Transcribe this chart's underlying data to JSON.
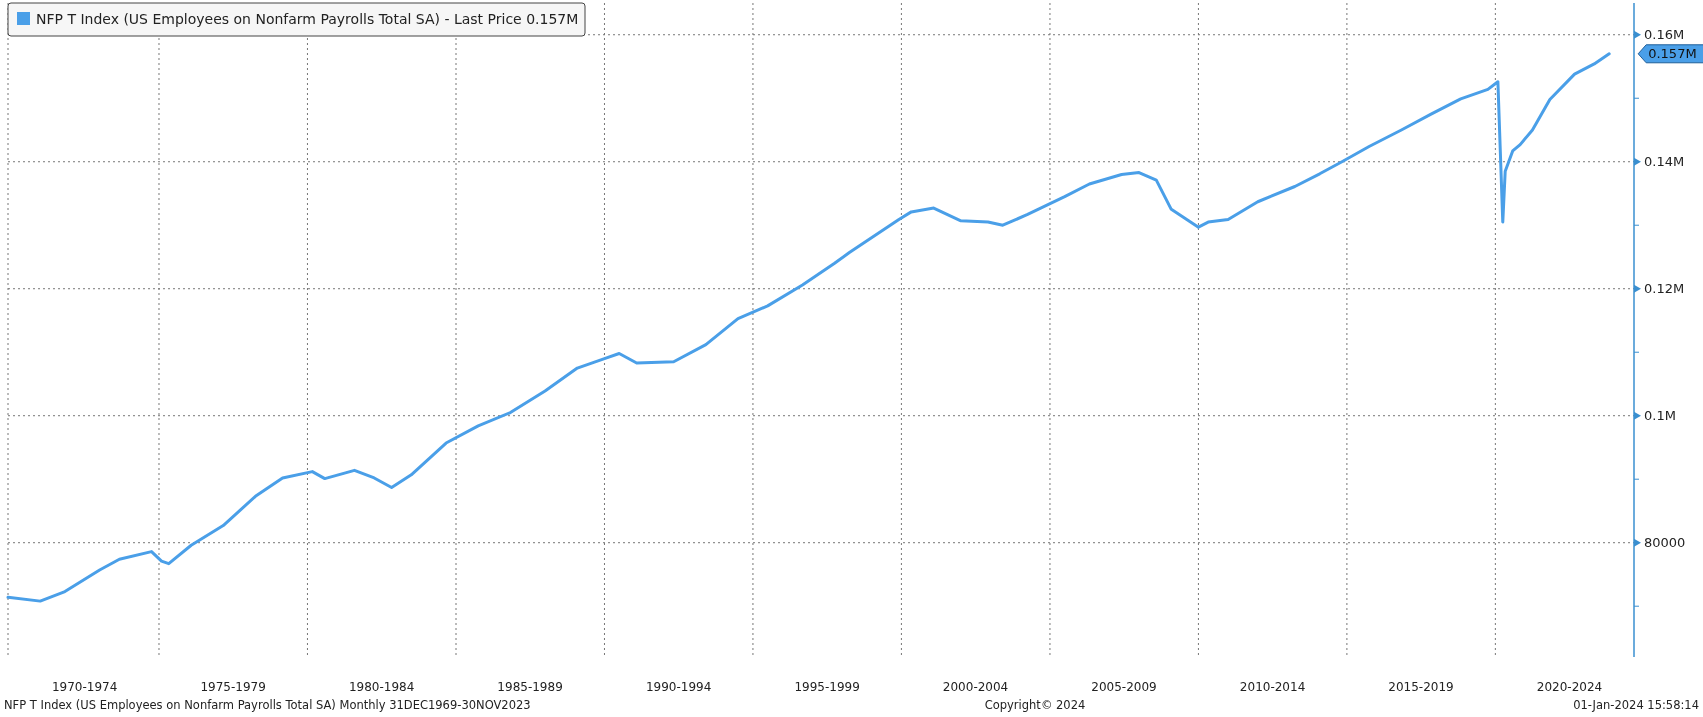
{
  "chart_data": {
    "type": "line",
    "x": [
      "1969-12",
      "1971-01",
      "1971-11",
      "1973-01",
      "1973-09",
      "1974-10",
      "1975-02",
      "1975-05",
      "1976-02",
      "1977-03",
      "1978-04",
      "1979-03",
      "1980-03",
      "1980-08",
      "1981-08",
      "1982-04",
      "1982-11",
      "1983-07",
      "1984-09",
      "1985-10",
      "1986-11",
      "1988-01",
      "1989-02",
      "1990-01",
      "1990-07",
      "1991-02",
      "1992-05",
      "1993-06",
      "1994-07",
      "1995-07",
      "1996-09",
      "1997-10",
      "1998-04",
      "1999-12",
      "2000-05",
      "2001-02",
      "2002-01",
      "2002-12",
      "2003-06",
      "2004-04",
      "2005-07",
      "2006-05",
      "2007-06",
      "2008-01",
      "2008-08",
      "2009-02",
      "2010-01",
      "2010-05",
      "2011-01",
      "2012-01",
      "2013-04",
      "2014-02",
      "2014-11",
      "2015-10",
      "2016-11",
      "2017-11",
      "2018-11",
      "2019-10",
      "2020-02",
      "2020-04",
      "2020-05",
      "2020-08",
      "2020-11",
      "2021-04",
      "2021-11",
      "2022-09",
      "2023-05",
      "2023-11"
    ],
    "series": [
      {
        "name": "NFP T Index (US Employees on Nonfarm Payrolls Total SA) - Last Price 0.157M",
        "color": "#4a9fe8",
        "values": [
          71400,
          70800,
          72300,
          75700,
          77400,
          78600,
          77100,
          76700,
          79600,
          82700,
          87300,
          90200,
          91200,
          90100,
          91400,
          90200,
          88700,
          90700,
          95700,
          98400,
          100500,
          103900,
          107500,
          109000,
          109800,
          108300,
          108500,
          111200,
          115300,
          117300,
          120600,
          124000,
          125700,
          130900,
          132100,
          132700,
          130700,
          130500,
          130000,
          131700,
          134500,
          136500,
          138000,
          138300,
          137100,
          132500,
          129700,
          130500,
          130900,
          133700,
          136100,
          138100,
          140000,
          142400,
          145000,
          147500,
          149900,
          151400,
          152600,
          130500,
          138500,
          141700,
          142700,
          145000,
          149800,
          153800,
          155400,
          157000
        ]
      }
    ],
    "xlim": [
      "1969-12",
      "2024-09"
    ],
    "xticks": [
      {
        "value": "1972-07",
        "label": "1970-1974"
      },
      {
        "value": "1975-01",
        "label": null
      },
      {
        "value": "1977-07",
        "label": "1975-1979"
      },
      {
        "value": "1980-01",
        "label": null
      },
      {
        "value": "1982-07",
        "label": "1980-1984"
      },
      {
        "value": "1985-01",
        "label": null
      },
      {
        "value": "1987-07",
        "label": "1985-1989"
      },
      {
        "value": "1990-01",
        "label": null
      },
      {
        "value": "1992-07",
        "label": "1990-1994"
      },
      {
        "value": "1995-01",
        "label": null
      },
      {
        "value": "1997-07",
        "label": "1995-1999"
      },
      {
        "value": "2000-01",
        "label": null
      },
      {
        "value": "2002-07",
        "label": "2000-2004"
      },
      {
        "value": "2005-01",
        "label": null
      },
      {
        "value": "2007-07",
        "label": "2005-2009"
      },
      {
        "value": "2010-01",
        "label": null
      },
      {
        "value": "2012-07",
        "label": "2010-2014"
      },
      {
        "value": "2015-01",
        "label": null
      },
      {
        "value": "2017-07",
        "label": "2015-2019"
      },
      {
        "value": "2020-01",
        "label": null
      },
      {
        "value": "2022-07",
        "label": "2020-2024"
      }
    ],
    "ylim": [
      62000,
      165000
    ],
    "yticks": [
      {
        "value": 70000,
        "label": null
      },
      {
        "value": 80000,
        "label": "80000"
      },
      {
        "value": 90000,
        "label": null
      },
      {
        "value": 100000,
        "label": "0.1M"
      },
      {
        "value": 110000,
        "label": null
      },
      {
        "value": 120000,
        "label": "0.12M"
      },
      {
        "value": 130000,
        "label": null
      },
      {
        "value": 140000,
        "label": "0.14M"
      },
      {
        "value": 150000,
        "label": null
      },
      {
        "value": 160000,
        "label": "0.16M"
      }
    ],
    "grid": true,
    "legend": "top left",
    "annotations": [
      {
        "text": "0.157M",
        "x": "2023-11",
        "y": 157000
      },
      "NFP T Index (US Employees on Nonfarm Payrolls Total SA)  Monthly 31DEC1969-30NOV2023",
      "Copyright© 2024",
      "01-Jan-2024 15:58:14"
    ]
  }
}
